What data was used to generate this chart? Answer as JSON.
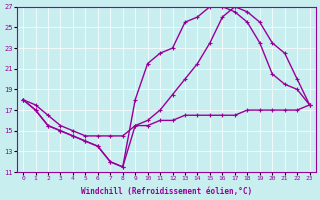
{
  "xlabel": "Windchill (Refroidissement éolien,°C)",
  "bg_color": "#c8eef0",
  "line_color": "#990099",
  "xlim": [
    -0.5,
    23.5
  ],
  "ylim": [
    11,
    27
  ],
  "yticks": [
    11,
    13,
    15,
    17,
    19,
    21,
    23,
    25,
    27
  ],
  "xticks": [
    0,
    1,
    2,
    3,
    4,
    5,
    6,
    7,
    8,
    9,
    10,
    11,
    12,
    13,
    14,
    15,
    16,
    17,
    18,
    19,
    20,
    21,
    22,
    23
  ],
  "curve1_x": [
    0,
    1,
    2,
    3,
    4,
    5,
    6,
    7,
    8,
    9,
    10,
    11,
    12,
    13,
    14,
    15,
    16,
    17,
    18,
    19,
    20,
    21,
    22,
    23
  ],
  "curve1_y": [
    18.0,
    17.0,
    15.5,
    15.0,
    14.5,
    14.0,
    13.5,
    12.0,
    11.5,
    15.5,
    15.5,
    16.0,
    16.0,
    16.5,
    16.5,
    16.5,
    16.5,
    16.5,
    17.0,
    17.0,
    17.0,
    17.0,
    17.0,
    17.5
  ],
  "curve2_x": [
    0,
    1,
    2,
    3,
    4,
    5,
    6,
    7,
    8,
    9,
    10,
    11,
    12,
    13,
    14,
    15,
    16,
    17,
    18,
    19,
    20,
    21,
    22,
    23
  ],
  "curve2_y": [
    18.0,
    17.0,
    15.5,
    15.0,
    14.5,
    14.0,
    13.5,
    12.0,
    11.5,
    18.0,
    21.5,
    22.5,
    23.0,
    25.5,
    26.0,
    27.0,
    27.0,
    26.5,
    25.5,
    23.5,
    20.5,
    19.5,
    19.0,
    17.5
  ],
  "curve3_x": [
    0,
    1,
    2,
    3,
    4,
    5,
    6,
    7,
    8,
    9,
    10,
    11,
    12,
    13,
    14,
    15,
    16,
    17,
    18,
    19,
    20,
    21,
    22,
    23
  ],
  "curve3_y": [
    18.0,
    17.5,
    16.5,
    15.5,
    15.0,
    14.5,
    14.5,
    14.5,
    14.5,
    15.5,
    16.0,
    17.0,
    18.5,
    20.0,
    21.5,
    23.5,
    26.0,
    27.0,
    26.5,
    25.5,
    23.5,
    22.5,
    20.0,
    17.5
  ],
  "markersize": 3.5,
  "linewidth": 1.0
}
